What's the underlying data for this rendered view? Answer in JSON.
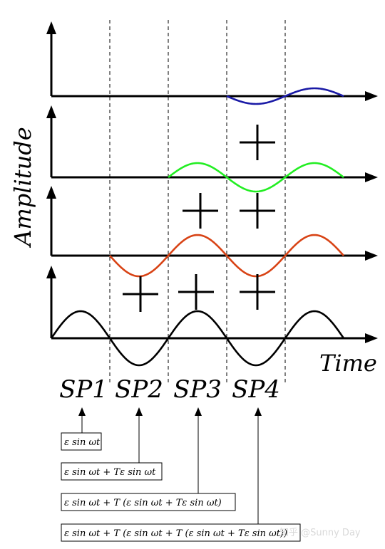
{
  "axis_labels": {
    "y": "Amplitude",
    "x": "Time"
  },
  "segment_labels": [
    "SP1",
    "SP2",
    "SP3",
    "SP4"
  ],
  "formulas": [
    "ε sin ωt",
    "ε sin ωt + Tε sin ωt",
    "ε sin ωt + T (ε sin ωt + Tε sin ωt)",
    "ε sin ωt + T (ε sin ωt + T (ε sin ωt + Tε sin ωt))"
  ],
  "watermark": "知乎 @Sunny Day",
  "colors": {
    "row1": "#000000",
    "row2": "#d84315",
    "row3": "#22ee22",
    "row4": "#1a1aa6"
  },
  "waves": [
    {
      "name": "row1-wave",
      "start_period": 0,
      "phase": "sin",
      "color": "#000000"
    },
    {
      "name": "row2-wave",
      "start_period": 1,
      "phase": "-sin",
      "color": "#d84315"
    },
    {
      "name": "row3-wave",
      "start_period": 2,
      "phase": "sin",
      "color": "#22ee22"
    },
    {
      "name": "row4-wave",
      "start_period": 3,
      "phase": "-sin",
      "color": "#1a1aa6"
    }
  ]
}
